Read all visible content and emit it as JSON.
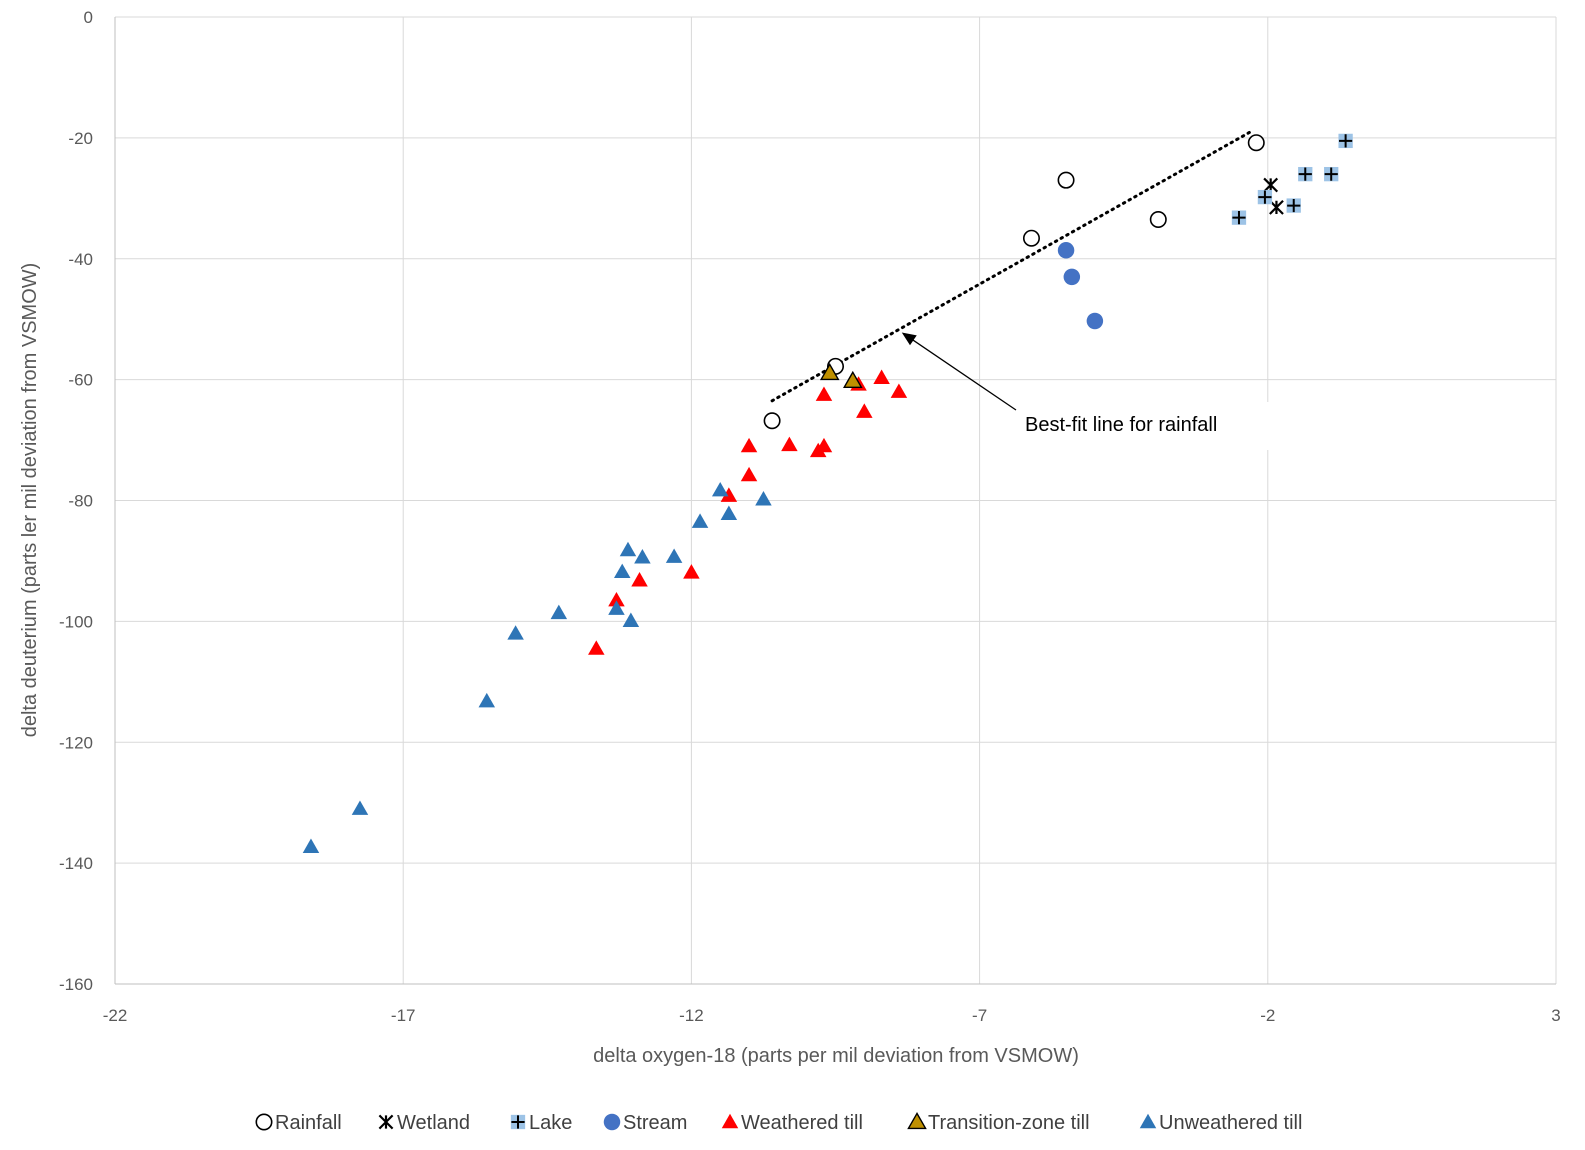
{
  "chart_data": {
    "type": "scatter",
    "title": "",
    "xlabel": "delta oxygen-18 (parts per mil deviation from VSMOW)",
    "ylabel": "delta deuterium (parts ler mil deviation from VSMOW)",
    "xlim": [
      -22,
      3
    ],
    "ylim": [
      -160,
      0
    ],
    "xticks": [
      -22,
      -17,
      -12,
      -7,
      -2,
      3
    ],
    "yticks": [
      0,
      -20,
      -40,
      -60,
      -80,
      -100,
      -120,
      -140,
      -160
    ],
    "grid": true,
    "legend_position": "bottom",
    "series": [
      {
        "name": "Rainfall",
        "marker": "open-circle",
        "color": "#000000",
        "points": [
          [
            -2.2,
            -20.8
          ],
          [
            -5.5,
            -27
          ],
          [
            -3.9,
            -33.5
          ],
          [
            -6.1,
            -36.6
          ],
          [
            -9.5,
            -57.8
          ],
          [
            -10.6,
            -66.8
          ]
        ]
      },
      {
        "name": "Wetland",
        "marker": "star-x",
        "color": "#1f3864",
        "points": [
          [
            -1.95,
            -27.8
          ],
          [
            -1.85,
            -31.5
          ]
        ]
      },
      {
        "name": "Lake",
        "marker": "plus-square",
        "color": "#9dc3e6",
        "points": [
          [
            -0.65,
            -20.5
          ],
          [
            -1.35,
            -26
          ],
          [
            -0.9,
            -26
          ],
          [
            -2.05,
            -29.8
          ],
          [
            -1.55,
            -31.2
          ],
          [
            -2.5,
            -33.2
          ]
        ]
      },
      {
        "name": "Stream",
        "marker": "filled-circle",
        "color": "#4472c4",
        "points": [
          [
            -5.5,
            -38.6
          ],
          [
            -5.4,
            -43
          ],
          [
            -5,
            -50.3
          ]
        ]
      },
      {
        "name": "Weathered till",
        "marker": "triangle",
        "color": "#ff0000",
        "points": [
          [
            -8.7,
            -59.7
          ],
          [
            -9.1,
            -60.8
          ],
          [
            -8.4,
            -62
          ],
          [
            -9.7,
            -62.5
          ],
          [
            -9.0,
            -65.3
          ],
          [
            -11.0,
            -71
          ],
          [
            -10.3,
            -70.8
          ],
          [
            -9.7,
            -71
          ],
          [
            -9.8,
            -71.8
          ],
          [
            -11.0,
            -75.8
          ],
          [
            -11.35,
            -79.2
          ],
          [
            -12.0,
            -91.9
          ],
          [
            -12.9,
            -93.2
          ],
          [
            -13.3,
            -96.5
          ],
          [
            -13.65,
            -104.5
          ]
        ]
      },
      {
        "name": "Transition-zone till",
        "marker": "triangle-outline",
        "color": "#bf9000",
        "points": [
          [
            -9.6,
            -58.9
          ],
          [
            -9.2,
            -60.2
          ]
        ]
      },
      {
        "name": "Unweathered till",
        "marker": "triangle",
        "color": "#2e75b6",
        "points": [
          [
            -11.5,
            -78.3
          ],
          [
            -10.75,
            -79.8
          ],
          [
            -11.35,
            -82.2
          ],
          [
            -11.85,
            -83.5
          ],
          [
            -13.1,
            -88.2
          ],
          [
            -12.85,
            -89.4
          ],
          [
            -12.3,
            -89.3
          ],
          [
            -13.2,
            -91.8
          ],
          [
            -14.3,
            -98.6
          ],
          [
            -13.3,
            -97.9
          ],
          [
            -13.05,
            -99.9
          ],
          [
            -15.05,
            -102
          ],
          [
            -15.55,
            -113.2
          ],
          [
            -17.75,
            -131
          ],
          [
            -18.6,
            -137.3
          ]
        ]
      }
    ],
    "trendline": {
      "label": "Best-fit line for rainfall",
      "from": [
        -10.6,
        -63.5
      ],
      "to": [
        -2.3,
        -19
      ]
    },
    "annotation": {
      "text": "Best-fit line for rainfall",
      "arrow_to": [
        -8.35,
        -52.2
      ]
    }
  }
}
